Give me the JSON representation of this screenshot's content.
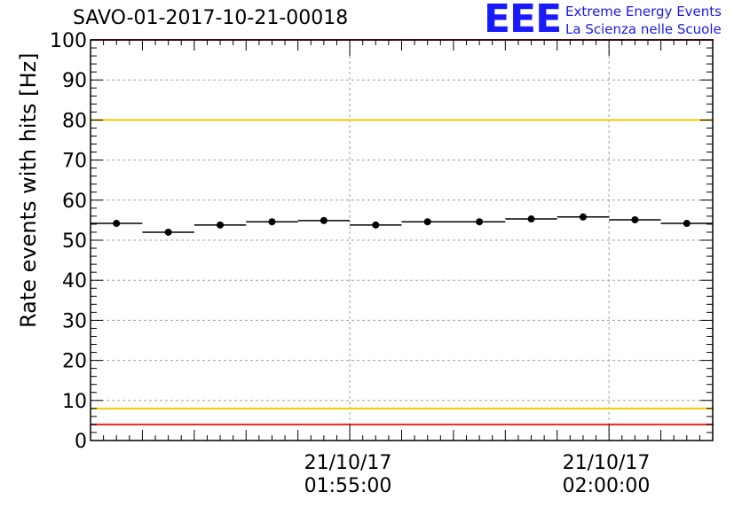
{
  "chart_data": {
    "type": "scatter",
    "title": "SAVO-01-2017-10-21-00018",
    "ylabel": "Rate events with hits [Hz]",
    "xlabel": "",
    "ylim": [
      0,
      100
    ],
    "yticks": [
      0,
      10,
      20,
      30,
      40,
      50,
      60,
      70,
      80,
      90,
      100
    ],
    "grid": true,
    "x_unit": "minutes after 01:50:00",
    "xlim": [
      0,
      12
    ],
    "x": [
      0.5,
      1.5,
      2.5,
      3.5,
      4.5,
      5.5,
      6.5,
      7.5,
      8.5,
      9.5,
      10.5,
      11.5
    ],
    "bin_width": 1,
    "values": [
      54.2,
      52.0,
      53.8,
      54.6,
      54.9,
      53.8,
      54.6,
      54.6,
      55.3,
      55.8,
      55.1,
      54.2
    ],
    "xticks": [
      {
        "x": 5,
        "date": "21/10/17",
        "time": "01:55:00"
      },
      {
        "x": 10,
        "date": "21/10/17",
        "time": "02:00:00"
      }
    ],
    "reference_lines": [
      {
        "y": 100,
        "color": "#e8281e"
      },
      {
        "y": 80,
        "color": "#f5c800"
      },
      {
        "y": 8,
        "color": "#f5c800"
      },
      {
        "y": 4,
        "color": "#e8281e"
      }
    ]
  },
  "logo": {
    "mark": "EEE",
    "line1": "Extreme Energy Events",
    "line2": "La Scienza nelle Scuole",
    "color": "#1a1aff"
  }
}
